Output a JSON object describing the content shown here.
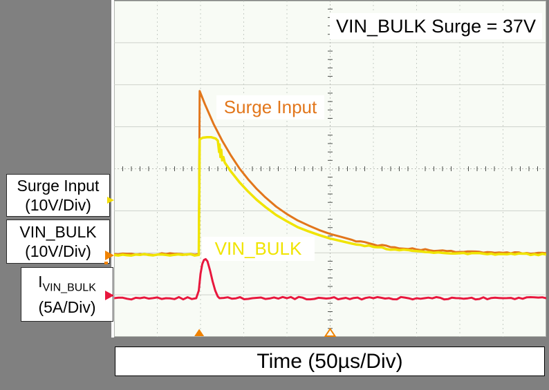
{
  "annotation_note": "VIN_BULK Surge = 37V",
  "chart_data": {
    "type": "line",
    "chart_style": "oscilloscope",
    "title": "",
    "annotation": "VIN_BULK Surge = 37V",
    "time_axis_label": "Time (50µs/Div)",
    "x_divisions": 10,
    "y_divisions": 8,
    "minor_ticks_per_div": 5,
    "grid": "on",
    "points_units": "grid divisions (x: 0-10 left to right at 50µs/div, y: 0-8 top to bottom)",
    "marker_color": "#f08200",
    "series": [
      {
        "name": "Surge Input",
        "scale_label": "(10V/Div)",
        "color": "#e2761b",
        "width": 3,
        "noise": 0.04,
        "points": [
          [
            0,
            6.03
          ],
          [
            0.6,
            6.03
          ],
          [
            1.2,
            6.03
          ],
          [
            1.96,
            6.03
          ],
          [
            1.98,
            2.15
          ],
          [
            2.1,
            2.46
          ],
          [
            2.3,
            2.93
          ],
          [
            2.5,
            3.33
          ],
          [
            2.7,
            3.68
          ],
          [
            2.9,
            3.99
          ],
          [
            3.1,
            4.25
          ],
          [
            3.3,
            4.48
          ],
          [
            3.5,
            4.68
          ],
          [
            3.75,
            4.9
          ],
          [
            4,
            5.08
          ],
          [
            4.25,
            5.23
          ],
          [
            4.5,
            5.35
          ],
          [
            4.75,
            5.46
          ],
          [
            5,
            5.55
          ],
          [
            5.25,
            5.62
          ],
          [
            5.5,
            5.69
          ],
          [
            6,
            5.8
          ],
          [
            6.5,
            5.87
          ],
          [
            7,
            5.92
          ],
          [
            7.5,
            5.95
          ],
          [
            8,
            5.98
          ],
          [
            9,
            6.0
          ],
          [
            10,
            6.01
          ]
        ]
      },
      {
        "name": "VIN_BULK",
        "scale_label": "(10V/Div)",
        "color": "#f0e400",
        "width": 3.5,
        "noise": 0.04,
        "points": [
          [
            0,
            6.05
          ],
          [
            0.6,
            6.05
          ],
          [
            1.2,
            6.05
          ],
          [
            1.96,
            6.05
          ],
          [
            1.98,
            3.3
          ],
          [
            2.05,
            3.26
          ],
          [
            2.15,
            3.25
          ],
          [
            2.25,
            3.25
          ],
          [
            2.35,
            3.28
          ],
          [
            2.4,
            3.33
          ],
          [
            2.43,
            3.6
          ],
          [
            2.44,
            3.42
          ],
          [
            2.46,
            3.72
          ],
          [
            2.48,
            3.55
          ],
          [
            2.5,
            3.8
          ],
          [
            2.53,
            3.72
          ],
          [
            2.56,
            3.85
          ],
          [
            2.7,
            4.06
          ],
          [
            2.9,
            4.32
          ],
          [
            3.1,
            4.54
          ],
          [
            3.3,
            4.74
          ],
          [
            3.5,
            4.91
          ],
          [
            3.75,
            5.1
          ],
          [
            4,
            5.25
          ],
          [
            4.25,
            5.39
          ],
          [
            4.5,
            5.49
          ],
          [
            4.75,
            5.58
          ],
          [
            5,
            5.66
          ],
          [
            5.25,
            5.72
          ],
          [
            5.5,
            5.78
          ],
          [
            6,
            5.86
          ],
          [
            6.5,
            5.92
          ],
          [
            7,
            5.96
          ],
          [
            7.5,
            5.99
          ],
          [
            8,
            6.01
          ],
          [
            9,
            6.03
          ],
          [
            10,
            6.04
          ]
        ]
      },
      {
        "name": "I_VIN_BULK",
        "symbol": "I",
        "symbol_sub": "VIN_BULK",
        "scale_label": "(5A/Div)",
        "color": "#e8173d",
        "width": 3,
        "noise": 0.06,
        "points": [
          [
            0,
            7.08
          ],
          [
            0.6,
            7.08
          ],
          [
            1.2,
            7.08
          ],
          [
            1.9,
            7.08
          ],
          [
            1.96,
            6.9
          ],
          [
            2,
            6.5
          ],
          [
            2.04,
            6.27
          ],
          [
            2.08,
            6.17
          ],
          [
            2.12,
            6.15
          ],
          [
            2.16,
            6.2
          ],
          [
            2.22,
            6.42
          ],
          [
            2.28,
            6.68
          ],
          [
            2.34,
            6.9
          ],
          [
            2.4,
            7.04
          ],
          [
            2.44,
            7.08
          ],
          [
            3.2,
            7.08
          ],
          [
            4,
            7.08
          ],
          [
            5,
            7.08
          ],
          [
            6,
            7.08
          ],
          [
            7,
            7.08
          ],
          [
            8,
            7.08
          ],
          [
            9,
            7.08
          ],
          [
            10,
            7.08
          ]
        ]
      }
    ],
    "left_markers": [
      {
        "color": "#f2dc00",
        "y_div": 4.74,
        "size": 5
      },
      {
        "color": "#f08200",
        "y_div": 6.06,
        "size": 7,
        "dot_y_div": 6.24
      },
      {
        "color": "#e8173d",
        "y_div": 7.02,
        "size": 7
      }
    ],
    "bottom_markers": [
      {
        "x_div": 1.97,
        "style": "filled"
      },
      {
        "x_div": 5,
        "style": "hollow"
      }
    ]
  }
}
